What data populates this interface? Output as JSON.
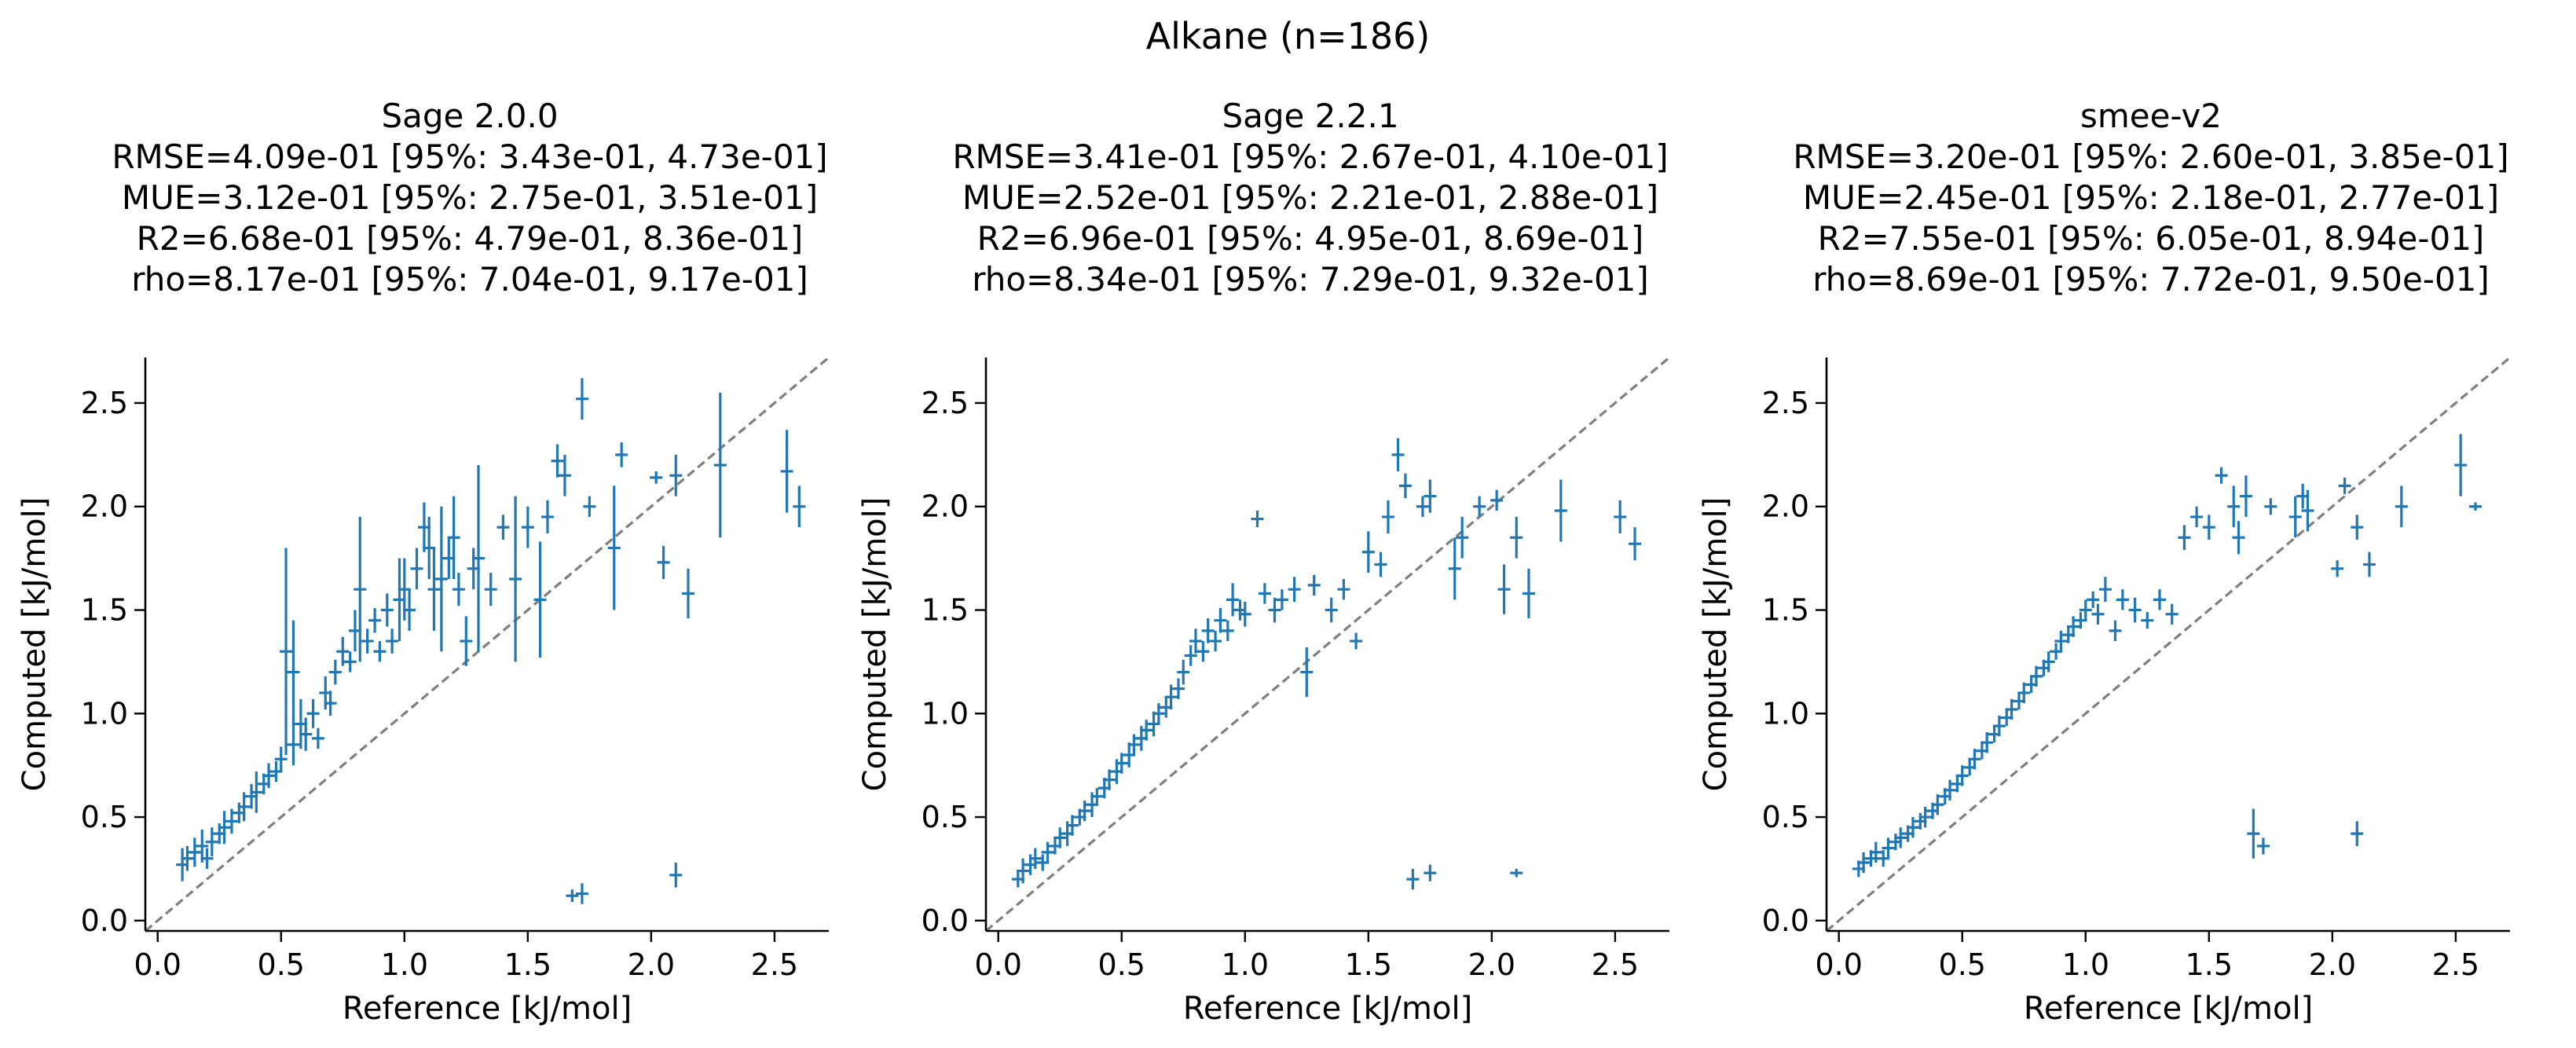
{
  "figure_title": "Alkane (n=186)",
  "chart_data": [
    {
      "type": "scatter",
      "title": "Sage 2.0.0",
      "stats": [
        "RMSE=4.09e-01 [95%: 3.43e-01, 4.73e-01]",
        "MUE=3.12e-01 [95%: 2.75e-01, 3.51e-01]",
        "R2=6.68e-01 [95%: 4.79e-01, 8.36e-01]",
        "rho=8.17e-01 [95%: 7.04e-01, 9.17e-01]"
      ],
      "xlabel": "Reference [kJ/mol]",
      "ylabel": "Computed [kJ/mol]",
      "xlim": [
        -0.05,
        2.72
      ],
      "ylim": [
        -0.05,
        2.72
      ],
      "xticks": [
        "0.0",
        "0.5",
        "1.0",
        "1.5",
        "2.0",
        "2.5"
      ],
      "yticks": [
        "0.0",
        "0.5",
        "1.0",
        "1.5",
        "2.0",
        "2.5"
      ],
      "identity_line": true,
      "grid": false,
      "color": "#1f77b4",
      "points": [
        [
          0.1,
          0.27,
          0.08
        ],
        [
          0.12,
          0.3,
          0.06
        ],
        [
          0.15,
          0.33,
          0.07
        ],
        [
          0.18,
          0.36,
          0.08
        ],
        [
          0.2,
          0.3,
          0.05
        ],
        [
          0.22,
          0.38,
          0.07
        ],
        [
          0.25,
          0.42,
          0.05
        ],
        [
          0.27,
          0.45,
          0.08
        ],
        [
          0.3,
          0.48,
          0.06
        ],
        [
          0.33,
          0.52,
          0.05
        ],
        [
          0.35,
          0.55,
          0.07
        ],
        [
          0.38,
          0.6,
          0.06
        ],
        [
          0.4,
          0.62,
          0.1
        ],
        [
          0.43,
          0.66,
          0.05
        ],
        [
          0.45,
          0.7,
          0.06
        ],
        [
          0.48,
          0.72,
          0.05
        ],
        [
          0.5,
          0.78,
          0.06
        ],
        [
          0.52,
          1.3,
          0.5
        ],
        [
          0.55,
          1.2,
          0.25
        ],
        [
          0.55,
          0.85,
          0.1
        ],
        [
          0.58,
          0.95,
          0.12
        ],
        [
          0.6,
          0.9,
          0.08
        ],
        [
          0.63,
          1.0,
          0.07
        ],
        [
          0.65,
          0.88,
          0.05
        ],
        [
          0.68,
          1.1,
          0.08
        ],
        [
          0.7,
          1.05,
          0.06
        ],
        [
          0.72,
          1.2,
          0.06
        ],
        [
          0.75,
          1.3,
          0.07
        ],
        [
          0.78,
          1.25,
          0.05
        ],
        [
          0.8,
          1.4,
          0.1
        ],
        [
          0.82,
          1.6,
          0.35
        ],
        [
          0.85,
          1.35,
          0.06
        ],
        [
          0.88,
          1.45,
          0.06
        ],
        [
          0.9,
          1.3,
          0.05
        ],
        [
          0.93,
          1.5,
          0.08
        ],
        [
          0.95,
          1.35,
          0.06
        ],
        [
          0.98,
          1.55,
          0.2
        ],
        [
          1.0,
          1.6,
          0.15
        ],
        [
          1.02,
          1.5,
          0.1
        ],
        [
          1.05,
          1.7,
          0.1
        ],
        [
          1.08,
          1.9,
          0.12
        ],
        [
          1.1,
          1.8,
          0.15
        ],
        [
          1.12,
          1.6,
          0.2
        ],
        [
          1.15,
          1.65,
          0.35
        ],
        [
          1.18,
          1.75,
          0.1
        ],
        [
          1.2,
          1.85,
          0.2
        ],
        [
          1.22,
          1.6,
          0.08
        ],
        [
          1.25,
          1.35,
          0.12
        ],
        [
          1.28,
          1.7,
          0.1
        ],
        [
          1.3,
          1.75,
          0.45
        ],
        [
          1.35,
          1.6,
          0.08
        ],
        [
          1.4,
          1.9,
          0.06
        ],
        [
          1.45,
          1.65,
          0.4
        ],
        [
          1.5,
          1.9,
          0.1
        ],
        [
          1.55,
          1.55,
          0.28
        ],
        [
          1.58,
          1.95,
          0.08
        ],
        [
          1.62,
          2.22,
          0.08
        ],
        [
          1.65,
          2.15,
          0.1
        ],
        [
          1.68,
          0.12,
          0.03
        ],
        [
          1.72,
          0.13,
          0.05
        ],
        [
          1.72,
          2.52,
          0.1
        ],
        [
          1.75,
          2.0,
          0.05
        ],
        [
          1.85,
          1.8,
          0.3
        ],
        [
          1.88,
          2.25,
          0.06
        ],
        [
          2.02,
          2.14,
          0.03
        ],
        [
          2.05,
          1.73,
          0.08
        ],
        [
          2.1,
          2.15,
          0.1
        ],
        [
          2.1,
          0.22,
          0.06
        ],
        [
          2.15,
          1.58,
          0.12
        ],
        [
          2.28,
          2.2,
          0.35
        ],
        [
          2.55,
          2.17,
          0.2
        ],
        [
          2.6,
          2.0,
          0.1
        ]
      ]
    },
    {
      "type": "scatter",
      "title": "Sage 2.2.1",
      "stats": [
        "RMSE=3.41e-01 [95%: 2.67e-01, 4.10e-01]",
        "MUE=2.52e-01 [95%: 2.21e-01, 2.88e-01]",
        "R2=6.96e-01 [95%: 4.95e-01, 8.69e-01]",
        "rho=8.34e-01 [95%: 7.29e-01, 9.32e-01]"
      ],
      "xlabel": "Reference [kJ/mol]",
      "ylabel": "Computed [kJ/mol]",
      "xlim": [
        -0.05,
        2.72
      ],
      "ylim": [
        -0.05,
        2.72
      ],
      "xticks": [
        "0.0",
        "0.5",
        "1.0",
        "1.5",
        "2.0",
        "2.5"
      ],
      "yticks": [
        "0.0",
        "0.5",
        "1.0",
        "1.5",
        "2.0",
        "2.5"
      ],
      "identity_line": true,
      "grid": false,
      "color": "#1f77b4",
      "points": [
        [
          0.08,
          0.2,
          0.04
        ],
        [
          0.1,
          0.24,
          0.06
        ],
        [
          0.13,
          0.27,
          0.05
        ],
        [
          0.15,
          0.3,
          0.05
        ],
        [
          0.18,
          0.28,
          0.04
        ],
        [
          0.2,
          0.33,
          0.05
        ],
        [
          0.23,
          0.36,
          0.04
        ],
        [
          0.25,
          0.4,
          0.05
        ],
        [
          0.28,
          0.42,
          0.06
        ],
        [
          0.3,
          0.46,
          0.05
        ],
        [
          0.33,
          0.5,
          0.04
        ],
        [
          0.35,
          0.53,
          0.05
        ],
        [
          0.38,
          0.56,
          0.06
        ],
        [
          0.4,
          0.6,
          0.04
        ],
        [
          0.43,
          0.64,
          0.05
        ],
        [
          0.45,
          0.68,
          0.05
        ],
        [
          0.48,
          0.72,
          0.06
        ],
        [
          0.5,
          0.76,
          0.05
        ],
        [
          0.53,
          0.8,
          0.06
        ],
        [
          0.55,
          0.85,
          0.05
        ],
        [
          0.58,
          0.88,
          0.06
        ],
        [
          0.6,
          0.92,
          0.05
        ],
        [
          0.63,
          0.95,
          0.06
        ],
        [
          0.65,
          1.0,
          0.05
        ],
        [
          0.68,
          1.03,
          0.05
        ],
        [
          0.7,
          1.08,
          0.06
        ],
        [
          0.73,
          1.12,
          0.05
        ],
        [
          0.75,
          1.2,
          0.06
        ],
        [
          0.78,
          1.28,
          0.05
        ],
        [
          0.8,
          1.35,
          0.06
        ],
        [
          0.83,
          1.3,
          0.05
        ],
        [
          0.85,
          1.4,
          0.06
        ],
        [
          0.88,
          1.35,
          0.05
        ],
        [
          0.9,
          1.45,
          0.06
        ],
        [
          0.93,
          1.4,
          0.05
        ],
        [
          0.95,
          1.55,
          0.08
        ],
        [
          0.98,
          1.5,
          0.05
        ],
        [
          1.0,
          1.48,
          0.06
        ],
        [
          1.05,
          1.94,
          0.04
        ],
        [
          1.08,
          1.58,
          0.05
        ],
        [
          1.12,
          1.5,
          0.06
        ],
        [
          1.15,
          1.55,
          0.05
        ],
        [
          1.2,
          1.6,
          0.06
        ],
        [
          1.25,
          1.2,
          0.12
        ],
        [
          1.28,
          1.62,
          0.05
        ],
        [
          1.35,
          1.5,
          0.06
        ],
        [
          1.4,
          1.6,
          0.05
        ],
        [
          1.45,
          1.35,
          0.04
        ],
        [
          1.5,
          1.78,
          0.1
        ],
        [
          1.55,
          1.72,
          0.06
        ],
        [
          1.58,
          1.95,
          0.08
        ],
        [
          1.62,
          2.25,
          0.08
        ],
        [
          1.65,
          2.1,
          0.06
        ],
        [
          1.68,
          0.2,
          0.05
        ],
        [
          1.72,
          2.0,
          0.05
        ],
        [
          1.75,
          0.23,
          0.04
        ],
        [
          1.75,
          2.05,
          0.08
        ],
        [
          1.85,
          1.7,
          0.15
        ],
        [
          1.88,
          1.85,
          0.1
        ],
        [
          1.95,
          2.0,
          0.05
        ],
        [
          2.02,
          2.03,
          0.05
        ],
        [
          2.05,
          1.6,
          0.12
        ],
        [
          2.1,
          1.85,
          0.1
        ],
        [
          2.1,
          0.23,
          0.02
        ],
        [
          2.15,
          1.58,
          0.12
        ],
        [
          2.28,
          1.98,
          0.15
        ],
        [
          2.52,
          1.95,
          0.08
        ],
        [
          2.58,
          1.82,
          0.08
        ]
      ]
    },
    {
      "type": "scatter",
      "title": "smee-v2",
      "stats": [
        "RMSE=3.20e-01 [95%: 2.60e-01, 3.85e-01]",
        "MUE=2.45e-01 [95%: 2.18e-01, 2.77e-01]",
        "R2=7.55e-01 [95%: 6.05e-01, 8.94e-01]",
        "rho=8.69e-01 [95%: 7.72e-01, 9.50e-01]"
      ],
      "xlabel": "Reference [kJ/mol]",
      "ylabel": "Computed [kJ/mol]",
      "xlim": [
        -0.05,
        2.72
      ],
      "ylim": [
        -0.05,
        2.72
      ],
      "xticks": [
        "0.0",
        "0.5",
        "1.0",
        "1.5",
        "2.0",
        "2.5"
      ],
      "yticks": [
        "0.0",
        "0.5",
        "1.0",
        "1.5",
        "2.0",
        "2.5"
      ],
      "identity_line": true,
      "grid": false,
      "color": "#1f77b4",
      "points": [
        [
          0.08,
          0.25,
          0.04
        ],
        [
          0.1,
          0.28,
          0.05
        ],
        [
          0.13,
          0.3,
          0.04
        ],
        [
          0.15,
          0.33,
          0.05
        ],
        [
          0.18,
          0.3,
          0.04
        ],
        [
          0.2,
          0.35,
          0.05
        ],
        [
          0.23,
          0.38,
          0.04
        ],
        [
          0.25,
          0.4,
          0.05
        ],
        [
          0.28,
          0.42,
          0.04
        ],
        [
          0.3,
          0.45,
          0.05
        ],
        [
          0.33,
          0.48,
          0.04
        ],
        [
          0.35,
          0.5,
          0.05
        ],
        [
          0.38,
          0.53,
          0.04
        ],
        [
          0.4,
          0.56,
          0.05
        ],
        [
          0.43,
          0.6,
          0.04
        ],
        [
          0.45,
          0.63,
          0.05
        ],
        [
          0.48,
          0.66,
          0.04
        ],
        [
          0.5,
          0.7,
          0.05
        ],
        [
          0.53,
          0.74,
          0.04
        ],
        [
          0.55,
          0.78,
          0.05
        ],
        [
          0.58,
          0.82,
          0.04
        ],
        [
          0.6,
          0.86,
          0.05
        ],
        [
          0.63,
          0.9,
          0.04
        ],
        [
          0.65,
          0.94,
          0.05
        ],
        [
          0.68,
          0.98,
          0.04
        ],
        [
          0.7,
          1.02,
          0.05
        ],
        [
          0.73,
          1.06,
          0.04
        ],
        [
          0.75,
          1.1,
          0.05
        ],
        [
          0.78,
          1.14,
          0.04
        ],
        [
          0.8,
          1.18,
          0.05
        ],
        [
          0.83,
          1.22,
          0.04
        ],
        [
          0.85,
          1.25,
          0.05
        ],
        [
          0.88,
          1.3,
          0.04
        ],
        [
          0.9,
          1.35,
          0.05
        ],
        [
          0.93,
          1.38,
          0.04
        ],
        [
          0.95,
          1.42,
          0.05
        ],
        [
          0.98,
          1.45,
          0.04
        ],
        [
          1.0,
          1.5,
          0.05
        ],
        [
          1.03,
          1.55,
          0.04
        ],
        [
          1.05,
          1.48,
          0.05
        ],
        [
          1.08,
          1.6,
          0.06
        ],
        [
          1.12,
          1.4,
          0.05
        ],
        [
          1.15,
          1.55,
          0.05
        ],
        [
          1.2,
          1.5,
          0.06
        ],
        [
          1.25,
          1.45,
          0.04
        ],
        [
          1.3,
          1.55,
          0.05
        ],
        [
          1.35,
          1.48,
          0.05
        ],
        [
          1.4,
          1.85,
          0.06
        ],
        [
          1.45,
          1.95,
          0.05
        ],
        [
          1.5,
          1.9,
          0.06
        ],
        [
          1.55,
          2.15,
          0.04
        ],
        [
          1.6,
          2.0,
          0.1
        ],
        [
          1.62,
          1.85,
          0.08
        ],
        [
          1.65,
          2.05,
          0.1
        ],
        [
          1.68,
          0.42,
          0.12
        ],
        [
          1.72,
          0.36,
          0.04
        ],
        [
          1.75,
          2.0,
          0.04
        ],
        [
          1.85,
          1.95,
          0.1
        ],
        [
          1.88,
          2.05,
          0.06
        ],
        [
          1.9,
          1.98,
          0.1
        ],
        [
          2.02,
          1.7,
          0.04
        ],
        [
          2.05,
          2.1,
          0.04
        ],
        [
          2.1,
          1.9,
          0.06
        ],
        [
          2.1,
          0.42,
          0.06
        ],
        [
          2.15,
          1.72,
          0.06
        ],
        [
          2.28,
          2.0,
          0.1
        ],
        [
          2.52,
          2.2,
          0.15
        ],
        [
          2.58,
          2.0,
          0.02
        ]
      ]
    }
  ]
}
